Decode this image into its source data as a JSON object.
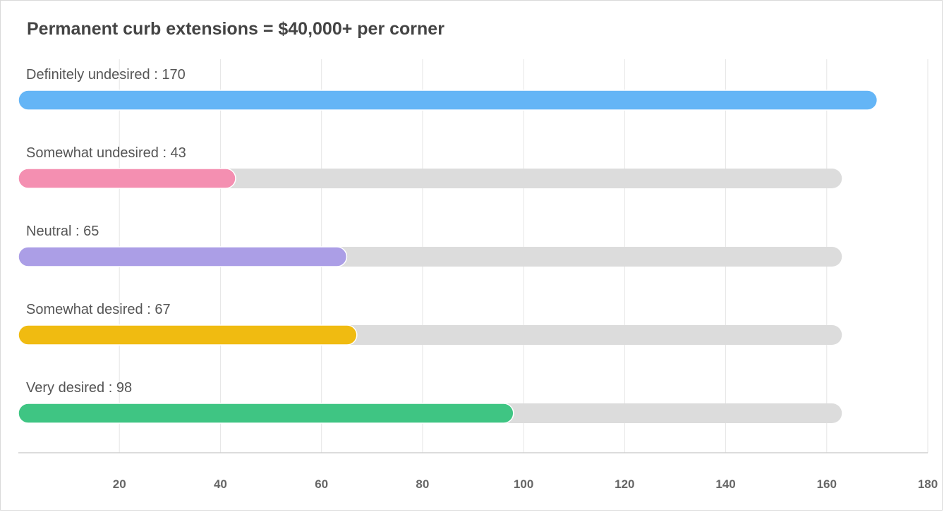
{
  "chart_data": {
    "type": "bar",
    "orientation": "horizontal",
    "title": "Permanent curb extensions = $40,000+ per corner",
    "categories": [
      "Definitely undesired",
      "Somewhat undesired",
      "Neutral",
      "Somewhat desired",
      "Very desired"
    ],
    "values": [
      170,
      43,
      65,
      67,
      98
    ],
    "label_separator": " : ",
    "colors": [
      "#64b5f6",
      "#f48fb1",
      "#ab9ee6",
      "#f0bb11",
      "#3fc583"
    ],
    "track_color": "#dcdcdc",
    "track_max": 163,
    "xlim": [
      0,
      180
    ],
    "xticks": [
      20,
      40,
      60,
      80,
      100,
      120,
      140,
      160,
      180
    ],
    "grid": true,
    "xlabel": "",
    "ylabel": ""
  }
}
